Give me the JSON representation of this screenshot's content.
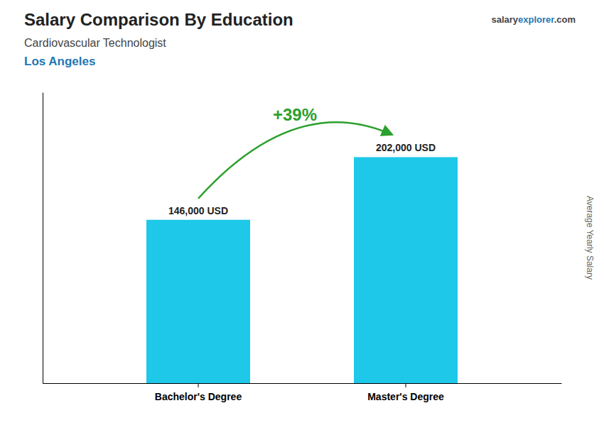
{
  "chart_data": {
    "type": "bar",
    "title": "Salary Comparison By Education",
    "subtitle": "Cardiovascular Technologist",
    "annotations": [
      "Los Angeles",
      "salary",
      "explorer",
      ".com",
      "+39%"
    ],
    "y_label": "Average Yearly Salary",
    "categories": [
      "Bachelor's Degree",
      "Master's Degree"
    ],
    "values": [
      146000,
      202000
    ],
    "value_labels": [
      "146,000 USD",
      "202,000 USD"
    ],
    "data_labels": true,
    "color": "#1EC8E8",
    "ylim": [
      0,
      260000
    ],
    "tick_labels": "x"
  }
}
